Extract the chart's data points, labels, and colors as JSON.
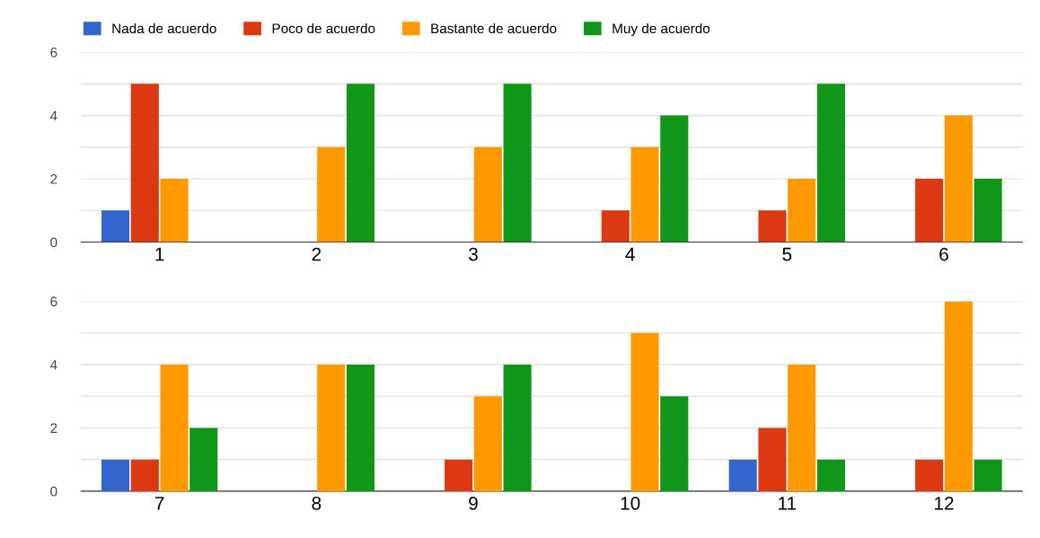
{
  "chart_data": [
    {
      "type": "bar",
      "categories": [
        "1",
        "2",
        "3",
        "4",
        "5",
        "6"
      ],
      "ylim": [
        0,
        6
      ],
      "yticks": [
        0,
        {
          "value": 1,
          "label": null
        },
        2,
        {
          "value": 3,
          "label": null
        },
        4,
        {
          "value": 5,
          "label": null
        },
        6
      ],
      "grid": "y",
      "legend": "top left",
      "series": [
        {
          "name": "Nada de acuerdo",
          "color": "#3366cc",
          "values": [
            1,
            0,
            0,
            0,
            0,
            0
          ]
        },
        {
          "name": "Poco de acuerdo",
          "color": "#dc3912",
          "values": [
            5,
            0,
            0,
            1,
            1,
            2
          ]
        },
        {
          "name": "Bastante de acuerdo",
          "color": "#ff9900",
          "values": [
            2,
            3,
            3,
            3,
            2,
            4
          ]
        },
        {
          "name": "Muy de acuerdo",
          "color": "#109618",
          "values": [
            0,
            5,
            5,
            4,
            5,
            2
          ]
        }
      ]
    },
    {
      "type": "bar",
      "categories": [
        "7",
        "8",
        "9",
        "10",
        "11",
        "12"
      ],
      "ylim": [
        0,
        6
      ],
      "yticks": [
        0,
        {
          "value": 1,
          "label": null
        },
        2,
        {
          "value": 3,
          "label": null
        },
        4,
        {
          "value": 5,
          "label": null
        },
        6
      ],
      "grid": "y",
      "series": [
        {
          "color": "#3366cc",
          "values": [
            1,
            0,
            0,
            0,
            1,
            0
          ]
        },
        {
          "color": "#dc3912",
          "values": [
            1,
            0,
            1,
            0,
            2,
            1
          ]
        },
        {
          "color": "#ff9900",
          "values": [
            4,
            4,
            3,
            5,
            4,
            6
          ]
        },
        {
          "color": "#109618",
          "values": [
            2,
            4,
            4,
            3,
            1,
            1
          ]
        }
      ]
    }
  ]
}
